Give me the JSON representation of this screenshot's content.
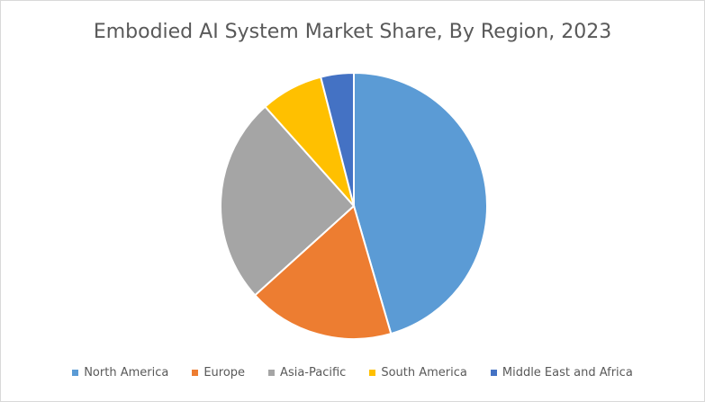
{
  "chart_data": {
    "type": "pie",
    "title": "Embodied AI System Market Share, By Region, 2023",
    "categories": [
      "North America",
      "Europe",
      "Asia-Pacific",
      "South America",
      "Middle East and Africa"
    ],
    "values": [
      45.5,
      17.8,
      25.1,
      7.6,
      4.0
    ],
    "colors": [
      "#5b9bd5",
      "#ed7d31",
      "#a5a5a5",
      "#ffc000",
      "#4472c4"
    ],
    "legend": "bottom"
  }
}
